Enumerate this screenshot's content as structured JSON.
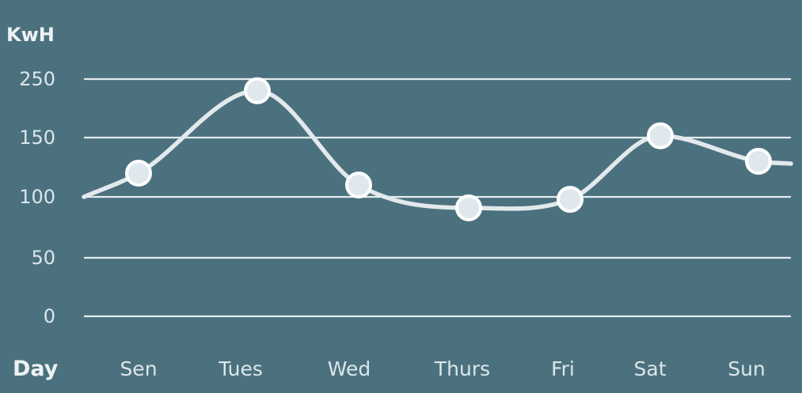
{
  "chart_data": {
    "type": "line",
    "xlabel": "Day",
    "ylabel": "KwH",
    "y_ticks": [
      "250",
      "150",
      "100",
      "50",
      "0"
    ],
    "categories": [
      "Sen",
      "Tues",
      "Wed",
      "Thurs",
      "Fri",
      "Sat",
      "Sun"
    ],
    "series": [
      {
        "values": [
          120,
          230,
          110,
          91,
          98,
          153,
          130
        ]
      }
    ],
    "line_start_value": 100,
    "line_end_value": 128,
    "grid": true,
    "colors": {
      "background": "#4b717e",
      "line": "#e2e9ec",
      "point": "#dfe8ec",
      "text": "#dce6ea"
    }
  }
}
